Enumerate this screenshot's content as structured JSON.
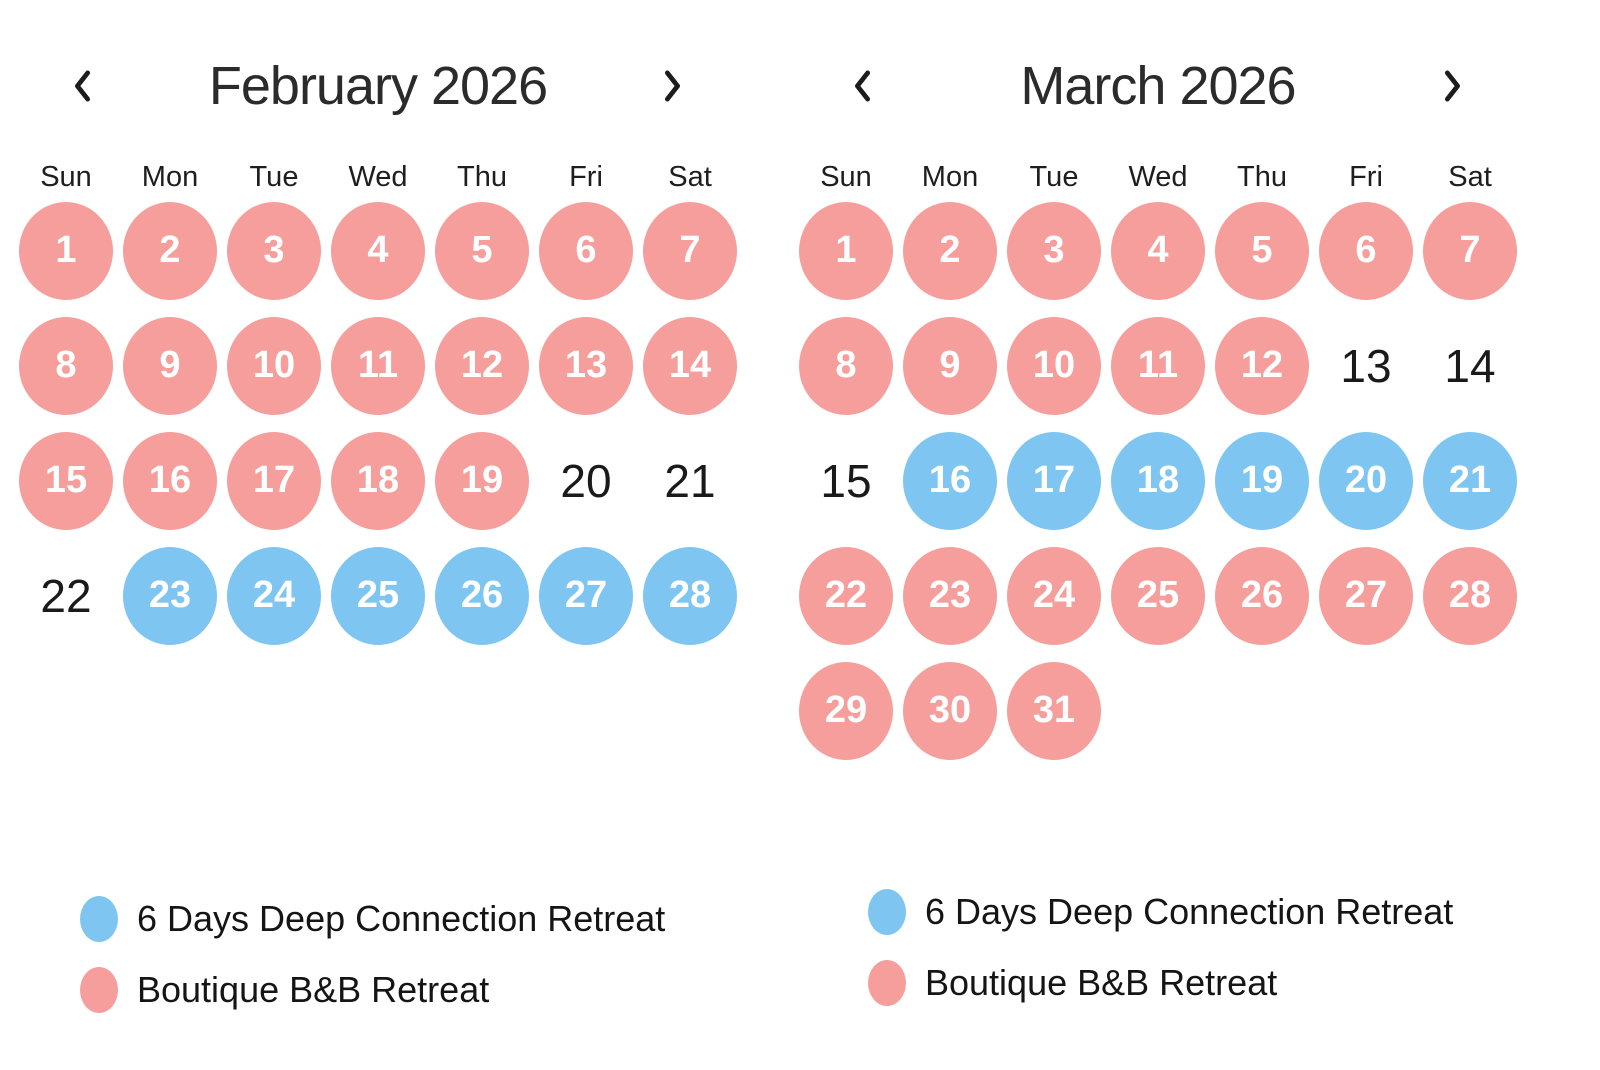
{
  "page": {
    "background": "#ffffff"
  },
  "colors": {
    "retreat_blue": "#7FC5F1",
    "retreat_pink": "#F69E9B"
  },
  "calendars": [
    {
      "id": "february",
      "title": "February 2026",
      "prev_icon": "chevron-left",
      "next_icon": "chevron-right",
      "weekdays": [
        "Sun",
        "Mon",
        "Tue",
        "Wed",
        "Thu",
        "Fri",
        "Sat"
      ],
      "start_col": 0,
      "days": [
        {
          "day": 1,
          "event": "pink"
        },
        {
          "day": 2,
          "event": "pink"
        },
        {
          "day": 3,
          "event": "pink"
        },
        {
          "day": 4,
          "event": "pink"
        },
        {
          "day": 5,
          "event": "pink"
        },
        {
          "day": 6,
          "event": "pink"
        },
        {
          "day": 7,
          "event": "pink"
        },
        {
          "day": 8,
          "event": "pink"
        },
        {
          "day": 9,
          "event": "pink"
        },
        {
          "day": 10,
          "event": "pink"
        },
        {
          "day": 11,
          "event": "pink"
        },
        {
          "day": 12,
          "event": "pink"
        },
        {
          "day": 13,
          "event": "pink"
        },
        {
          "day": 14,
          "event": "pink"
        },
        {
          "day": 15,
          "event": "pink"
        },
        {
          "day": 16,
          "event": "pink"
        },
        {
          "day": 17,
          "event": "pink"
        },
        {
          "day": 18,
          "event": "pink"
        },
        {
          "day": 19,
          "event": "pink"
        },
        {
          "day": 20,
          "event": "none"
        },
        {
          "day": 21,
          "event": "none"
        },
        {
          "day": 22,
          "event": "none"
        },
        {
          "day": 23,
          "event": "blue"
        },
        {
          "day": 24,
          "event": "blue"
        },
        {
          "day": 25,
          "event": "blue"
        },
        {
          "day": 26,
          "event": "blue"
        },
        {
          "day": 27,
          "event": "blue"
        },
        {
          "day": 28,
          "event": "blue"
        }
      ]
    },
    {
      "id": "march",
      "title": "March 2026",
      "prev_icon": "chevron-left",
      "next_icon": "chevron-right",
      "weekdays": [
        "Sun",
        "Mon",
        "Tue",
        "Wed",
        "Thu",
        "Fri",
        "Sat"
      ],
      "start_col": 0,
      "days": [
        {
          "day": 1,
          "event": "pink"
        },
        {
          "day": 2,
          "event": "pink"
        },
        {
          "day": 3,
          "event": "pink"
        },
        {
          "day": 4,
          "event": "pink"
        },
        {
          "day": 5,
          "event": "pink"
        },
        {
          "day": 6,
          "event": "pink"
        },
        {
          "day": 7,
          "event": "pink"
        },
        {
          "day": 8,
          "event": "pink"
        },
        {
          "day": 9,
          "event": "pink"
        },
        {
          "day": 10,
          "event": "pink"
        },
        {
          "day": 11,
          "event": "pink"
        },
        {
          "day": 12,
          "event": "pink"
        },
        {
          "day": 13,
          "event": "none"
        },
        {
          "day": 14,
          "event": "none"
        },
        {
          "day": 15,
          "event": "none"
        },
        {
          "day": 16,
          "event": "blue"
        },
        {
          "day": 17,
          "event": "blue"
        },
        {
          "day": 18,
          "event": "blue"
        },
        {
          "day": 19,
          "event": "blue"
        },
        {
          "day": 20,
          "event": "blue"
        },
        {
          "day": 21,
          "event": "blue"
        },
        {
          "day": 22,
          "event": "pink"
        },
        {
          "day": 23,
          "event": "pink"
        },
        {
          "day": 24,
          "event": "pink"
        },
        {
          "day": 25,
          "event": "pink"
        },
        {
          "day": 26,
          "event": "pink"
        },
        {
          "day": 27,
          "event": "pink"
        },
        {
          "day": 28,
          "event": "pink"
        },
        {
          "day": 29,
          "event": "pink"
        },
        {
          "day": 30,
          "event": "pink"
        },
        {
          "day": 31,
          "event": "pink"
        }
      ]
    }
  ],
  "legends": [
    {
      "position": "left",
      "items": [
        {
          "color": "blue",
          "label": "6 Days Deep Connection Retreat"
        },
        {
          "color": "pink",
          "label": "Boutique B&B Retreat"
        }
      ]
    },
    {
      "position": "right",
      "items": [
        {
          "color": "blue",
          "label": "6 Days Deep Connection Retreat"
        },
        {
          "color": "pink",
          "label": "Boutique B&B Retreat"
        }
      ]
    }
  ]
}
